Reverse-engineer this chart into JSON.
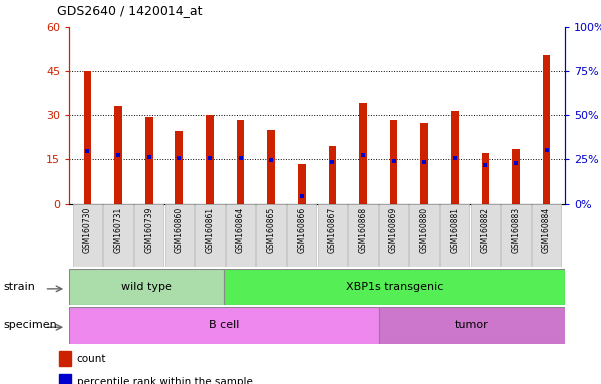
{
  "title": "GDS2640 / 1420014_at",
  "samples": [
    "GSM160730",
    "GSM160731",
    "GSM160739",
    "GSM160860",
    "GSM160861",
    "GSM160864",
    "GSM160865",
    "GSM160866",
    "GSM160867",
    "GSM160868",
    "GSM160869",
    "GSM160880",
    "GSM160881",
    "GSM160882",
    "GSM160883",
    "GSM160884"
  ],
  "counts": [
    45.0,
    33.0,
    29.5,
    24.5,
    30.0,
    28.5,
    25.0,
    13.5,
    19.5,
    34.0,
    28.5,
    27.5,
    31.5,
    17.0,
    18.5,
    50.5
  ],
  "percentiles": [
    30.0,
    27.5,
    26.5,
    25.5,
    26.0,
    25.5,
    24.5,
    4.5,
    23.5,
    27.5,
    24.0,
    23.5,
    25.5,
    22.0,
    23.0,
    30.5
  ],
  "bar_color": "#cc2200",
  "dot_color": "#0000cc",
  "left_yticks": [
    0,
    15,
    30,
    45,
    60
  ],
  "right_yticks": [
    0,
    25,
    50,
    75,
    100
  ],
  "ylim_left": [
    0,
    60
  ],
  "ylim_right": [
    0,
    100
  ],
  "strain_groups": [
    {
      "label": "wild type",
      "start": 0,
      "end": 5,
      "color": "#aaddaa"
    },
    {
      "label": "XBP1s transgenic",
      "start": 5,
      "end": 16,
      "color": "#55ee55"
    }
  ],
  "specimen_groups": [
    {
      "label": "B cell",
      "start": 0,
      "end": 10,
      "color": "#ee88ee"
    },
    {
      "label": "tumor",
      "start": 10,
      "end": 16,
      "color": "#cc77cc"
    }
  ],
  "fig_bg": "#ffffff",
  "plot_bg": "#ffffff",
  "xtick_bg": "#dddddd",
  "grid_ticks": [
    15,
    30,
    45
  ],
  "bar_width": 0.25
}
